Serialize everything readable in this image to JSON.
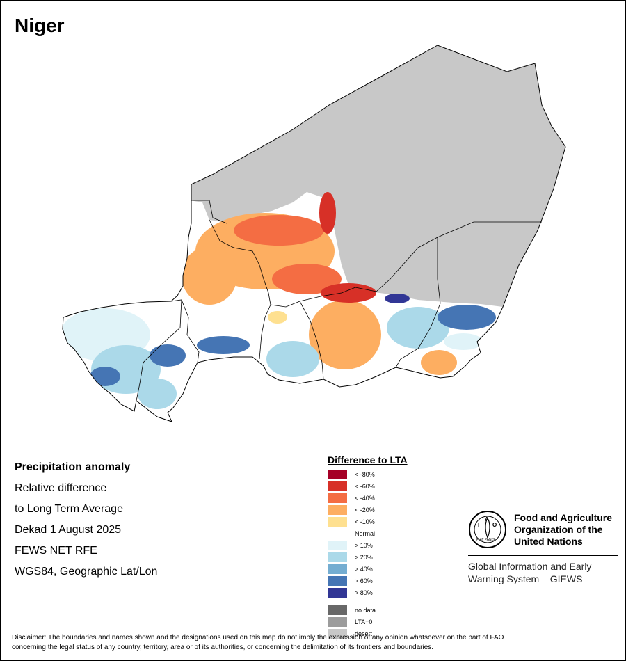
{
  "map": {
    "title": "Niger",
    "colors": {
      "desert": "#c8c8c8",
      "border": "#000000",
      "normal": "#ffffff",
      "red80": "#a50026",
      "red60": "#d73027",
      "red40": "#f46d43",
      "red20": "#fdae61",
      "red10": "#fee090",
      "blue10": "#e0f3f8",
      "blue20": "#abd9e9",
      "blue40": "#74add1",
      "blue60": "#4575b4",
      "blue80": "#313695"
    }
  },
  "info": {
    "heading": "Precipitation anomaly",
    "line1": "Relative difference",
    "line2": "to Long Term Average",
    "line3": "Dekad 1 August 2025",
    "line4": "FEWS NET RFE",
    "line5": "WGS84, Geographic Lat/Lon"
  },
  "legend": {
    "title": "Difference to LTA",
    "items": [
      {
        "label": "< -80%",
        "color": "#a50026"
      },
      {
        "label": "< -60%",
        "color": "#d73027"
      },
      {
        "label": "< -40%",
        "color": "#f46d43"
      },
      {
        "label": "< -20%",
        "color": "#fdae61"
      },
      {
        "label": "< -10%",
        "color": "#fee090"
      },
      {
        "label": "Normal",
        "color": "#ffffff"
      },
      {
        "label": "> 10%",
        "color": "#e0f3f8"
      },
      {
        "label": "> 20%",
        "color": "#abd9e9"
      },
      {
        "label": "> 40%",
        "color": "#74add1"
      },
      {
        "label": "> 60%",
        "color": "#4575b4"
      },
      {
        "label": "> 80%",
        "color": "#313695"
      }
    ],
    "extra": [
      {
        "label": "no data",
        "color": "#686868"
      },
      {
        "label": "LTA=0",
        "color": "#9c9c9c"
      },
      {
        "label": "desert",
        "color": "#c8c8c8"
      }
    ]
  },
  "fao": {
    "name_line1": "Food and Agriculture",
    "name_line2": "Organization of the",
    "name_line3": "United Nations",
    "logo_letters": "FAO",
    "logo_motto": "FIAT PANIS",
    "giews_line1": "Global Information and Early",
    "giews_line2": "Warning System – GIEWS"
  },
  "disclaimer": {
    "line1": "Disclaimer: The boundaries and names shown and the designations used on this map do not imply the expression of any opinion whatsoever on the part of FAO",
    "line2": "concerning the legal status of any country, territory, area or of its authorities, or concerning the delimitation of its frontiers and boundaries."
  }
}
